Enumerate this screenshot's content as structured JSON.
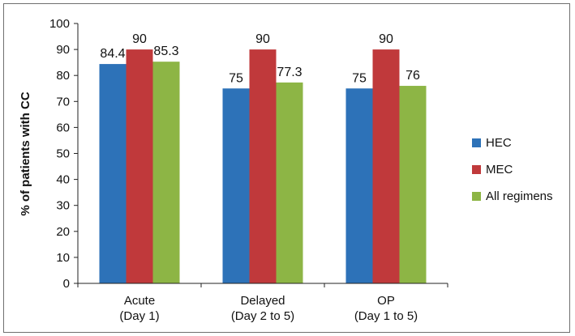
{
  "chart_data": {
    "type": "bar",
    "categories": [
      [
        "Acute",
        "(Day 1)"
      ],
      [
        "Delayed",
        "(Day 2 to 5)"
      ],
      [
        "OP",
        "(Day 1 to 5)"
      ]
    ],
    "series": [
      {
        "name": "HEC",
        "values": [
          84.4,
          75,
          75
        ],
        "labels": [
          "84.4",
          "75",
          "75"
        ],
        "color": "#2d72b8"
      },
      {
        "name": "MEC",
        "values": [
          90,
          90,
          90
        ],
        "labels": [
          "90",
          "90",
          "90"
        ],
        "color": "#c0393b"
      },
      {
        "name": "All regimens",
        "values": [
          85.3,
          77.3,
          76
        ],
        "labels": [
          "85.3",
          "77.3",
          "76"
        ],
        "color": "#8db545"
      }
    ],
    "ylabel": "% of patients with CC",
    "xlabel": "",
    "ylim": [
      0,
      100
    ],
    "yticks": [
      0,
      10,
      20,
      30,
      40,
      50,
      60,
      70,
      80,
      90,
      100
    ],
    "grid": false,
    "legend": "right"
  }
}
